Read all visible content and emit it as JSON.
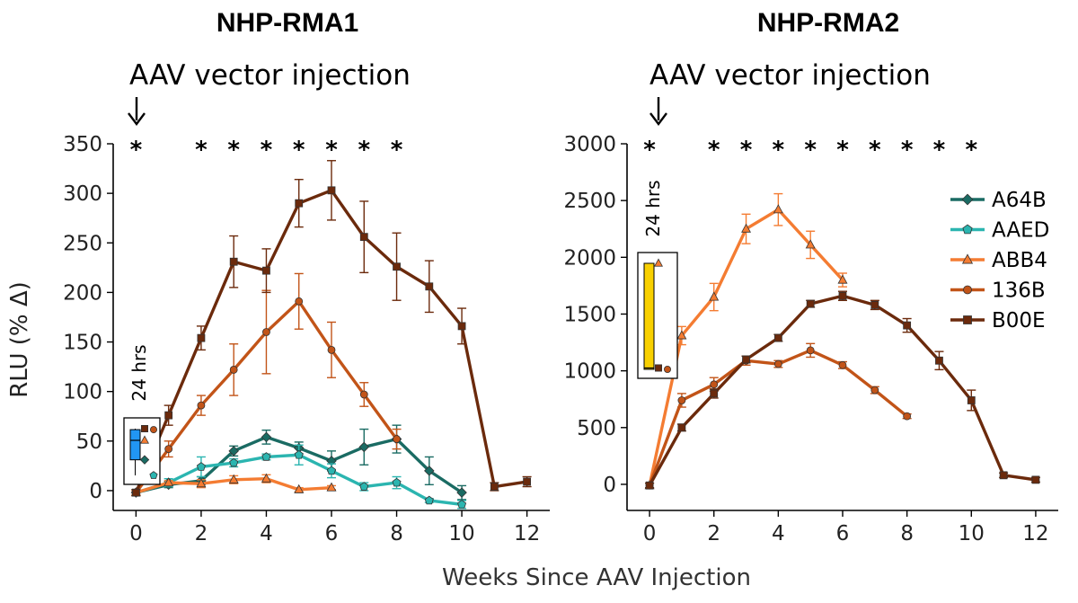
{
  "figure": {
    "xlabel": "Weeks Since AAV Injection",
    "ylabel": "RLU (% Δ)"
  },
  "legend": [
    {
      "name": "A64B",
      "color": "#1a6b63",
      "marker": "diamond"
    },
    {
      "name": "AAED",
      "color": "#2bb5b0",
      "marker": "pentagon"
    },
    {
      "name": "ABB4",
      "color": "#f47c32",
      "marker": "triangle"
    },
    {
      "name": "136B",
      "color": "#c25418",
      "marker": "circle"
    },
    {
      "name": "B00E",
      "color": "#6b2a0c",
      "marker": "square"
    }
  ],
  "chart_data": [
    {
      "type": "line",
      "title": "NHP-RMA1",
      "annotation": "AAV vector injection",
      "inset_label": "24 hrs",
      "inset_box_color": "#2196f3",
      "significance_marker": "*",
      "significance_weeks": [
        0,
        2,
        3,
        4,
        5,
        6,
        7,
        8
      ],
      "xlim": [
        -0.7,
        12.7
      ],
      "ylim": [
        -20,
        350
      ],
      "xticks": [
        0,
        2,
        4,
        6,
        8,
        10,
        12
      ],
      "yticks": [
        0,
        50,
        100,
        150,
        200,
        250,
        300,
        350
      ],
      "series": [
        {
          "name": "A64B",
          "x": [
            0,
            1,
            2,
            3,
            4,
            5,
            6,
            7,
            8,
            9,
            10
          ],
          "y": [
            -2,
            6,
            10,
            40,
            54,
            43,
            30,
            44,
            52,
            20,
            -2
          ],
          "err": [
            3,
            3,
            4,
            5,
            7,
            6,
            10,
            18,
            14,
            14,
            7
          ]
        },
        {
          "name": "AAED",
          "x": [
            0,
            1,
            2,
            3,
            4,
            5,
            6,
            7,
            8,
            9,
            10
          ],
          "y": [
            -2,
            8,
            24,
            28,
            34,
            36,
            20,
            4,
            8,
            -10,
            -14
          ],
          "err": [
            3,
            4,
            10,
            4,
            3,
            10,
            7,
            4,
            6,
            2,
            4
          ]
        },
        {
          "name": "ABB4",
          "x": [
            0,
            1,
            2,
            3,
            4,
            5,
            6
          ],
          "y": [
            -2,
            8,
            7,
            11,
            12,
            1,
            3
          ],
          "err": [
            2,
            2,
            4,
            4,
            4,
            2,
            2
          ]
        },
        {
          "name": "136B",
          "x": [
            0,
            1,
            2,
            3,
            4,
            5,
            6,
            7,
            8
          ],
          "y": [
            -2,
            42,
            86,
            122,
            160,
            191,
            142,
            97,
            52
          ],
          "err": [
            3,
            8,
            10,
            26,
            42,
            28,
            28,
            12,
            10
          ]
        },
        {
          "name": "B00E",
          "x": [
            0,
            1,
            2,
            3,
            4,
            5,
            6,
            7,
            8,
            9,
            10,
            11,
            12
          ],
          "y": [
            -2,
            76,
            154,
            231,
            222,
            290,
            303,
            256,
            226,
            206,
            166,
            4,
            9
          ],
          "err": [
            3,
            10,
            12,
            26,
            22,
            24,
            30,
            36,
            34,
            26,
            18,
            4,
            5
          ]
        }
      ],
      "inset_points": [
        {
          "name": "A64B",
          "value": 22
        },
        {
          "name": "AAED",
          "value": 6
        },
        {
          "name": "ABB4",
          "value": 42
        },
        {
          "name": "136B",
          "value": 53
        },
        {
          "name": "B00E",
          "value": 54
        }
      ]
    },
    {
      "type": "line",
      "title": "NHP-RMA2",
      "annotation": "AAV vector injection",
      "inset_label": "24 hrs",
      "inset_box_color": "#f8d000",
      "significance_marker": "*",
      "significance_weeks": [
        0,
        2,
        3,
        4,
        5,
        6,
        7,
        8,
        9,
        10
      ],
      "xlim": [
        -0.7,
        12.7
      ],
      "ylim": [
        -230,
        3000
      ],
      "xticks": [
        0,
        2,
        4,
        6,
        8,
        10,
        12
      ],
      "yticks": [
        0,
        500,
        1000,
        1500,
        2000,
        2500,
        3000
      ],
      "series": [
        {
          "name": "ABB4",
          "x": [
            0,
            1,
            2,
            3,
            4,
            5,
            6
          ],
          "y": [
            -10,
            1310,
            1650,
            2250,
            2420,
            2110,
            1800
          ],
          "err": [
            20,
            80,
            120,
            130,
            140,
            120,
            60
          ]
        },
        {
          "name": "136B",
          "x": [
            0,
            1,
            2,
            3,
            4,
            5,
            6,
            7,
            8
          ],
          "y": [
            -10,
            740,
            880,
            1090,
            1060,
            1180,
            1050,
            830,
            600
          ],
          "err": [
            20,
            60,
            60,
            40,
            30,
            60,
            30,
            30,
            20
          ]
        },
        {
          "name": "B00E",
          "x": [
            0,
            1,
            2,
            3,
            4,
            5,
            6,
            7,
            8,
            9,
            10,
            11,
            12
          ],
          "y": [
            -10,
            500,
            800,
            1100,
            1290,
            1590,
            1660,
            1580,
            1400,
            1090,
            740,
            80,
            40
          ],
          "err": [
            20,
            30,
            40,
            30,
            30,
            30,
            40,
            40,
            60,
            80,
            90,
            20,
            20
          ]
        }
      ],
      "inset_points": [
        {
          "name": "ABB4",
          "value": 1950
        },
        {
          "name": "136B",
          "value": 1170
        },
        {
          "name": "B00E",
          "value": 1180
        }
      ]
    }
  ]
}
